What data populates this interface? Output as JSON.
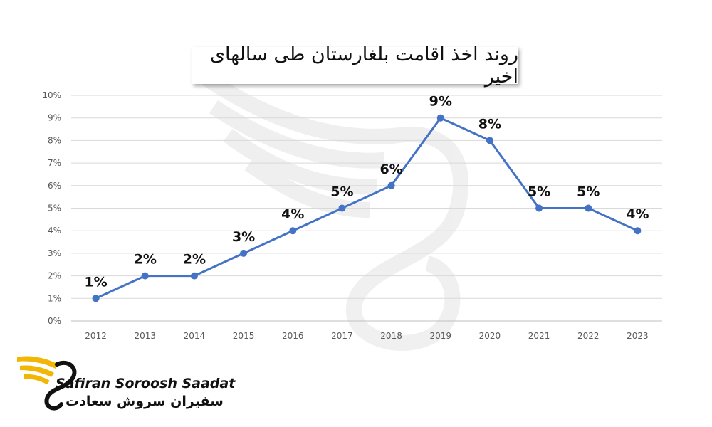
{
  "brand": {
    "name_en": "Safiran Soroosh Saadat",
    "name_fa": "سفیران سروش سعادت",
    "colors": {
      "wing": "#f2b705",
      "dark": "#111111"
    }
  },
  "chart_data": {
    "type": "line",
    "title": "روند اخذ اقامت بلغارستان طی سالهای اخیر",
    "xlabel": "",
    "ylabel": "",
    "categories": [
      "2012",
      "2013",
      "2014",
      "2015",
      "2016",
      "2017",
      "2018",
      "2019",
      "2020",
      "2021",
      "2022",
      "2023"
    ],
    "series": [
      {
        "values": [
          1,
          2,
          2,
          3,
          4,
          5,
          6,
          9,
          8,
          5,
          5,
          4
        ],
        "color": "#4472c4"
      }
    ],
    "data_labels": [
      "1%",
      "2%",
      "2%",
      "3%",
      "4%",
      "5%",
      "6%",
      "9%",
      "8%",
      "5%",
      "5%",
      "4%"
    ],
    "y_ticks": [
      "0%",
      "1%",
      "2%",
      "3%",
      "4%",
      "5%",
      "6%",
      "7%",
      "8%",
      "9%",
      "10%"
    ],
    "ylim": [
      0,
      10
    ],
    "grid": true,
    "legend": "none",
    "watermark": "swan-logo"
  }
}
